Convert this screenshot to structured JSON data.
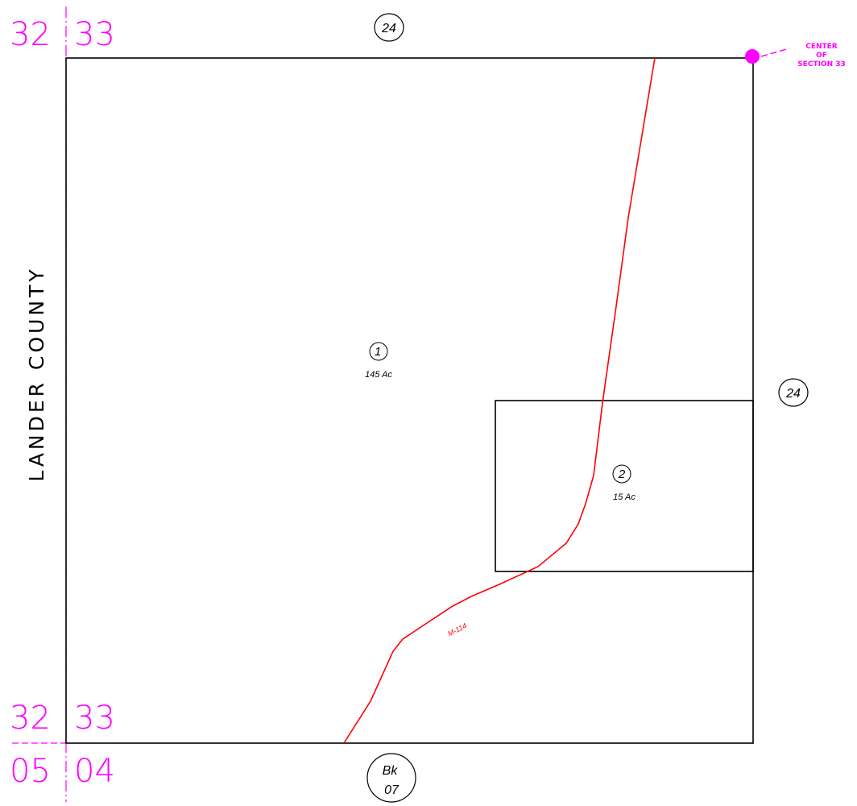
{
  "colors": {
    "line": "#000000",
    "section": "#ff00ff",
    "road": "#ff0000"
  },
  "section_labels": {
    "top_left": "32",
    "top_right": "33",
    "bottom_left_upper": "32",
    "bottom_right_upper": "33",
    "bottom_left_lower": "05",
    "bottom_right_lower": "04"
  },
  "county_label": "LANDER COUNTY",
  "center_label": {
    "line1": "CENTER",
    "line2": "OF",
    "line3": "SECTION 33"
  },
  "parcels": [
    {
      "number": "1",
      "acres": "145 Ac"
    },
    {
      "number": "2",
      "acres": "15 Ac"
    }
  ],
  "road_label": "M-114",
  "adjacent_refs": {
    "top": "24",
    "right": "24"
  },
  "book_ref": {
    "line1": "Bk",
    "line2": "07"
  }
}
